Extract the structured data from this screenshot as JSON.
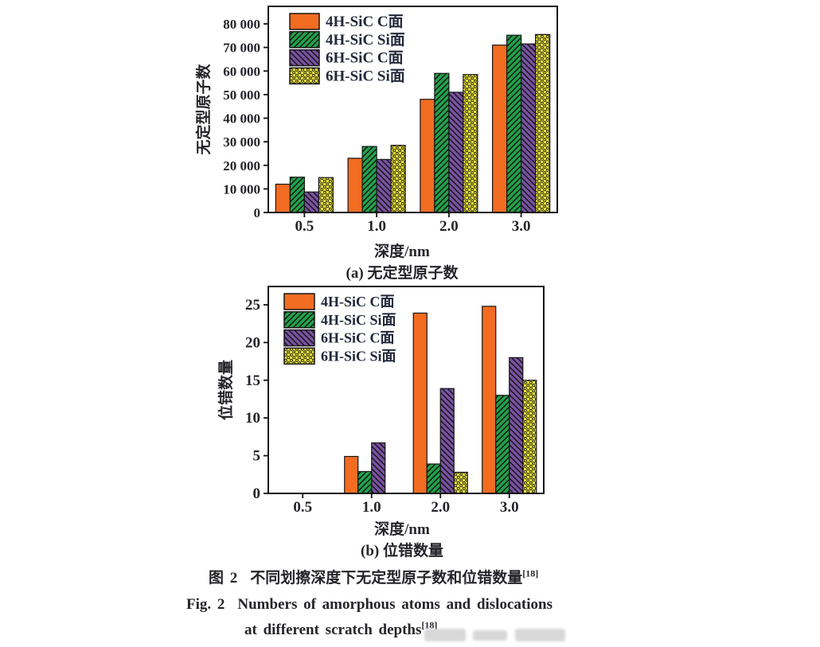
{
  "figure": {
    "caption_zh": {
      "prefix": "图 2",
      "text": "不同划擦深度下无定型原子数和位错数量",
      "sup": "[18]"
    },
    "caption_en": {
      "prefix": "Fig. 2",
      "line1": "Numbers of amorphous atoms and dislocations",
      "line2": "at different scratch depths",
      "sup": "[18]"
    }
  },
  "chart_data": [
    {
      "id": "amorphous",
      "type": "bar",
      "title": "(a) 无定型原子数",
      "xlabel": "深度/nm",
      "ylabel": "无定型原子数",
      "categories": [
        "0.5",
        "1.0",
        "2.0",
        "3.0"
      ],
      "series": [
        {
          "name": "4H-SiC C面",
          "color": "#F26C21",
          "pattern": "solid",
          "values": [
            12000,
            23000,
            48000,
            71000
          ]
        },
        {
          "name": "4H-SiC Si面",
          "color": "#21A24A",
          "pattern": "hatch-up",
          "values": [
            15000,
            28000,
            59000,
            75200
          ]
        },
        {
          "name": "6H-SiC C面",
          "color": "#7A52A3",
          "pattern": "hatch-down",
          "values": [
            8700,
            22500,
            51000,
            71500
          ]
        },
        {
          "name": "6H-SiC Si面",
          "color": "#E6DF35",
          "pattern": "dots",
          "values": [
            14800,
            28500,
            58500,
            75500
          ]
        }
      ],
      "ylim": [
        0,
        80000
      ],
      "ytick_step": 10000,
      "ytick_labels": [
        "0",
        "10 000",
        "20 000",
        "30 000",
        "40 000",
        "50 000",
        "60 000",
        "70 000",
        "80 000"
      ],
      "legend_position": "top-left",
      "grid": false
    },
    {
      "id": "dislocations",
      "type": "bar",
      "title": "(b) 位错数量",
      "xlabel": "深度/nm",
      "ylabel": "位错数量",
      "categories": [
        "0.5",
        "1.0",
        "2.0",
        "3.0"
      ],
      "series": [
        {
          "name": "4H-SiC C面",
          "color": "#F26C21",
          "pattern": "solid",
          "values": [
            0,
            4.9,
            23.9,
            24.8
          ]
        },
        {
          "name": "4H-SiC Si面",
          "color": "#21A24A",
          "pattern": "hatch-up",
          "values": [
            0,
            2.9,
            3.9,
            13.0
          ]
        },
        {
          "name": "6H-SiC C面",
          "color": "#7A52A3",
          "pattern": "hatch-down",
          "values": [
            0,
            6.7,
            13.9,
            18.0
          ]
        },
        {
          "name": "6H-SiC Si面",
          "color": "#E6DF35",
          "pattern": "dots",
          "values": [
            0,
            0,
            2.8,
            15.0
          ]
        }
      ],
      "ylim": [
        0,
        25
      ],
      "ytick_step": 5,
      "ytick_labels": [
        "0",
        "5",
        "10",
        "15",
        "20",
        "25"
      ],
      "legend_position": "top-left",
      "grid": false
    }
  ]
}
